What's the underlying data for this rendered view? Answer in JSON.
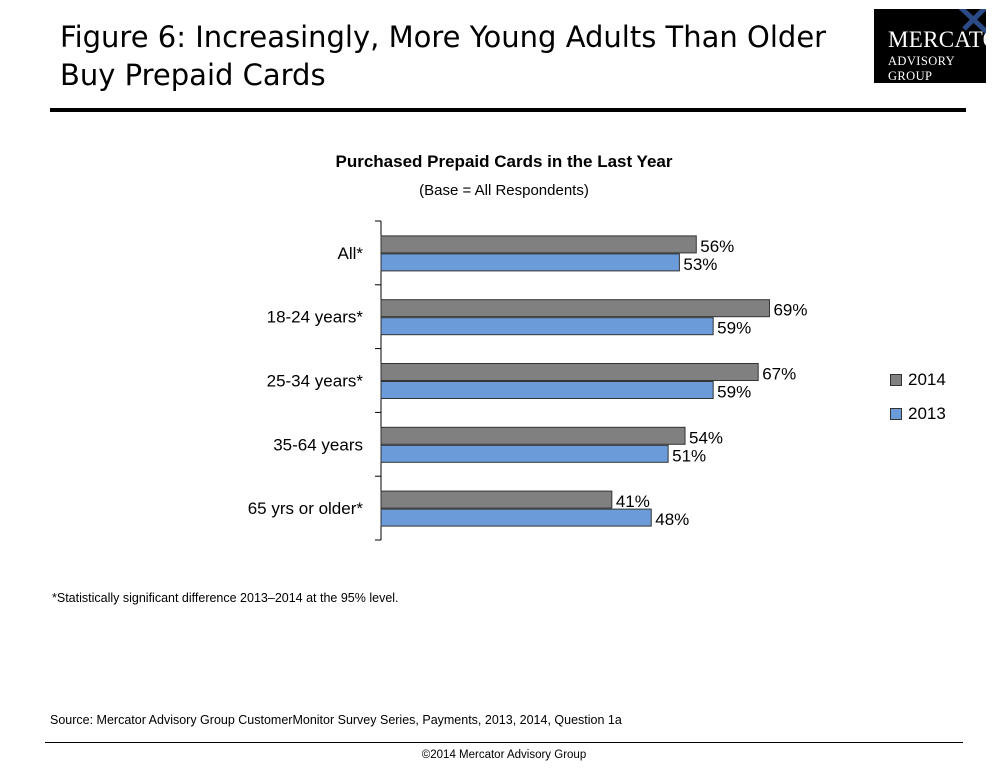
{
  "header": {
    "title": "Figure 6: Increasingly, More Young Adults Than Older Buy Prepaid Cards",
    "logo_line1": "MERCATOR",
    "logo_line2": "ADVISORY GROUP"
  },
  "chart_data": {
    "type": "bar",
    "orientation": "horizontal",
    "title": "Purchased  Prepaid Cards in the Last Year",
    "subtitle": "(Base = All Respondents)",
    "categories": [
      "All*",
      "18-24 years*",
      "25-34 years*",
      "35-64 years",
      "65 yrs or older*"
    ],
    "series": [
      {
        "name": "2014",
        "values": [
          56,
          69,
          67,
          54,
          41
        ],
        "labels": [
          "56%",
          "69%",
          "67%",
          "54%",
          "41%"
        ],
        "color": "#808080"
      },
      {
        "name": "2013",
        "values": [
          53,
          59,
          59,
          51,
          48
        ],
        "labels": [
          "53%",
          "59%",
          "59%",
          "51%",
          "48%"
        ],
        "color": "#6b9bd8"
      }
    ],
    "legend_position": "right",
    "grid": false
  },
  "footnote": "*Statistically significant difference 2013–2014  at the  95% level.",
  "source": "Source: Mercator Advisory Group CustomerMonitor Survey Series, Payments, 2013, 2014,  Question 1a",
  "copyright": "©2014 Mercator Advisory Group"
}
